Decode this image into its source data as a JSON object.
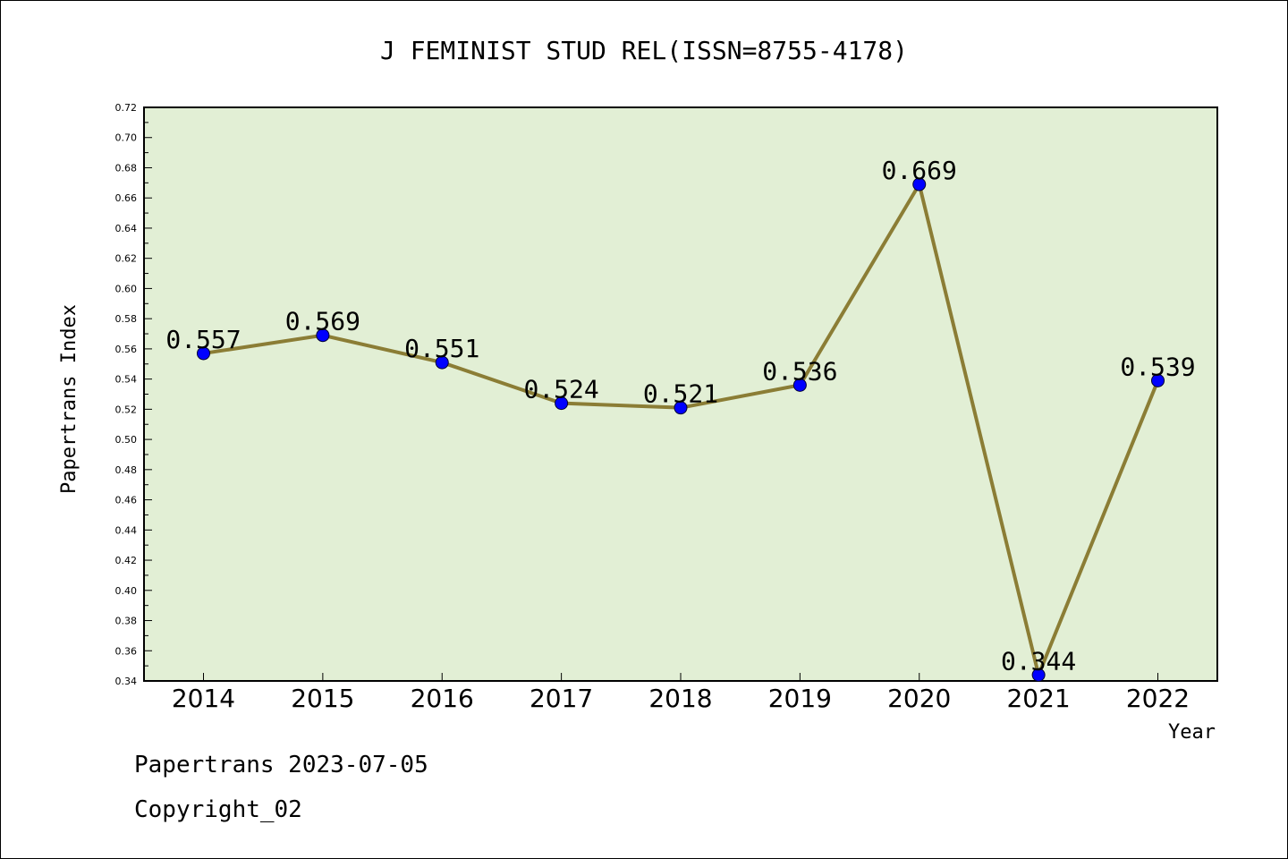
{
  "chart_data": {
    "type": "line",
    "title": "J FEMINIST STUD REL(ISSN=8755-4178)",
    "xlabel": "Year",
    "ylabel": "Papertrans Index",
    "categories": [
      "2014",
      "2015",
      "2016",
      "2017",
      "2018",
      "2019",
      "2020",
      "2021",
      "2022"
    ],
    "values": [
      0.557,
      0.569,
      0.551,
      0.524,
      0.521,
      0.536,
      0.669,
      0.344,
      0.539
    ],
    "data_labels": [
      "0.557",
      "0.569",
      "0.551",
      "0.524",
      "0.521",
      "0.536",
      "0.669",
      "0.344",
      "0.539"
    ],
    "ylim": [
      0.34,
      0.72
    ],
    "yticks": [
      "0.34",
      "0.36",
      "0.38",
      "0.40",
      "0.42",
      "0.44",
      "0.46",
      "0.48",
      "0.50",
      "0.52",
      "0.54",
      "0.56",
      "0.58",
      "0.60",
      "0.62",
      "0.64",
      "0.66",
      "0.68",
      "0.70",
      "0.72"
    ],
    "grid": false,
    "legend": "none",
    "colors": {
      "plot_background": "#e2efd5",
      "line": "#8b7d35",
      "marker": "#0000ff"
    }
  },
  "footer": {
    "line1": "Papertrans 2023-07-05",
    "line2": "Copyright_02"
  }
}
